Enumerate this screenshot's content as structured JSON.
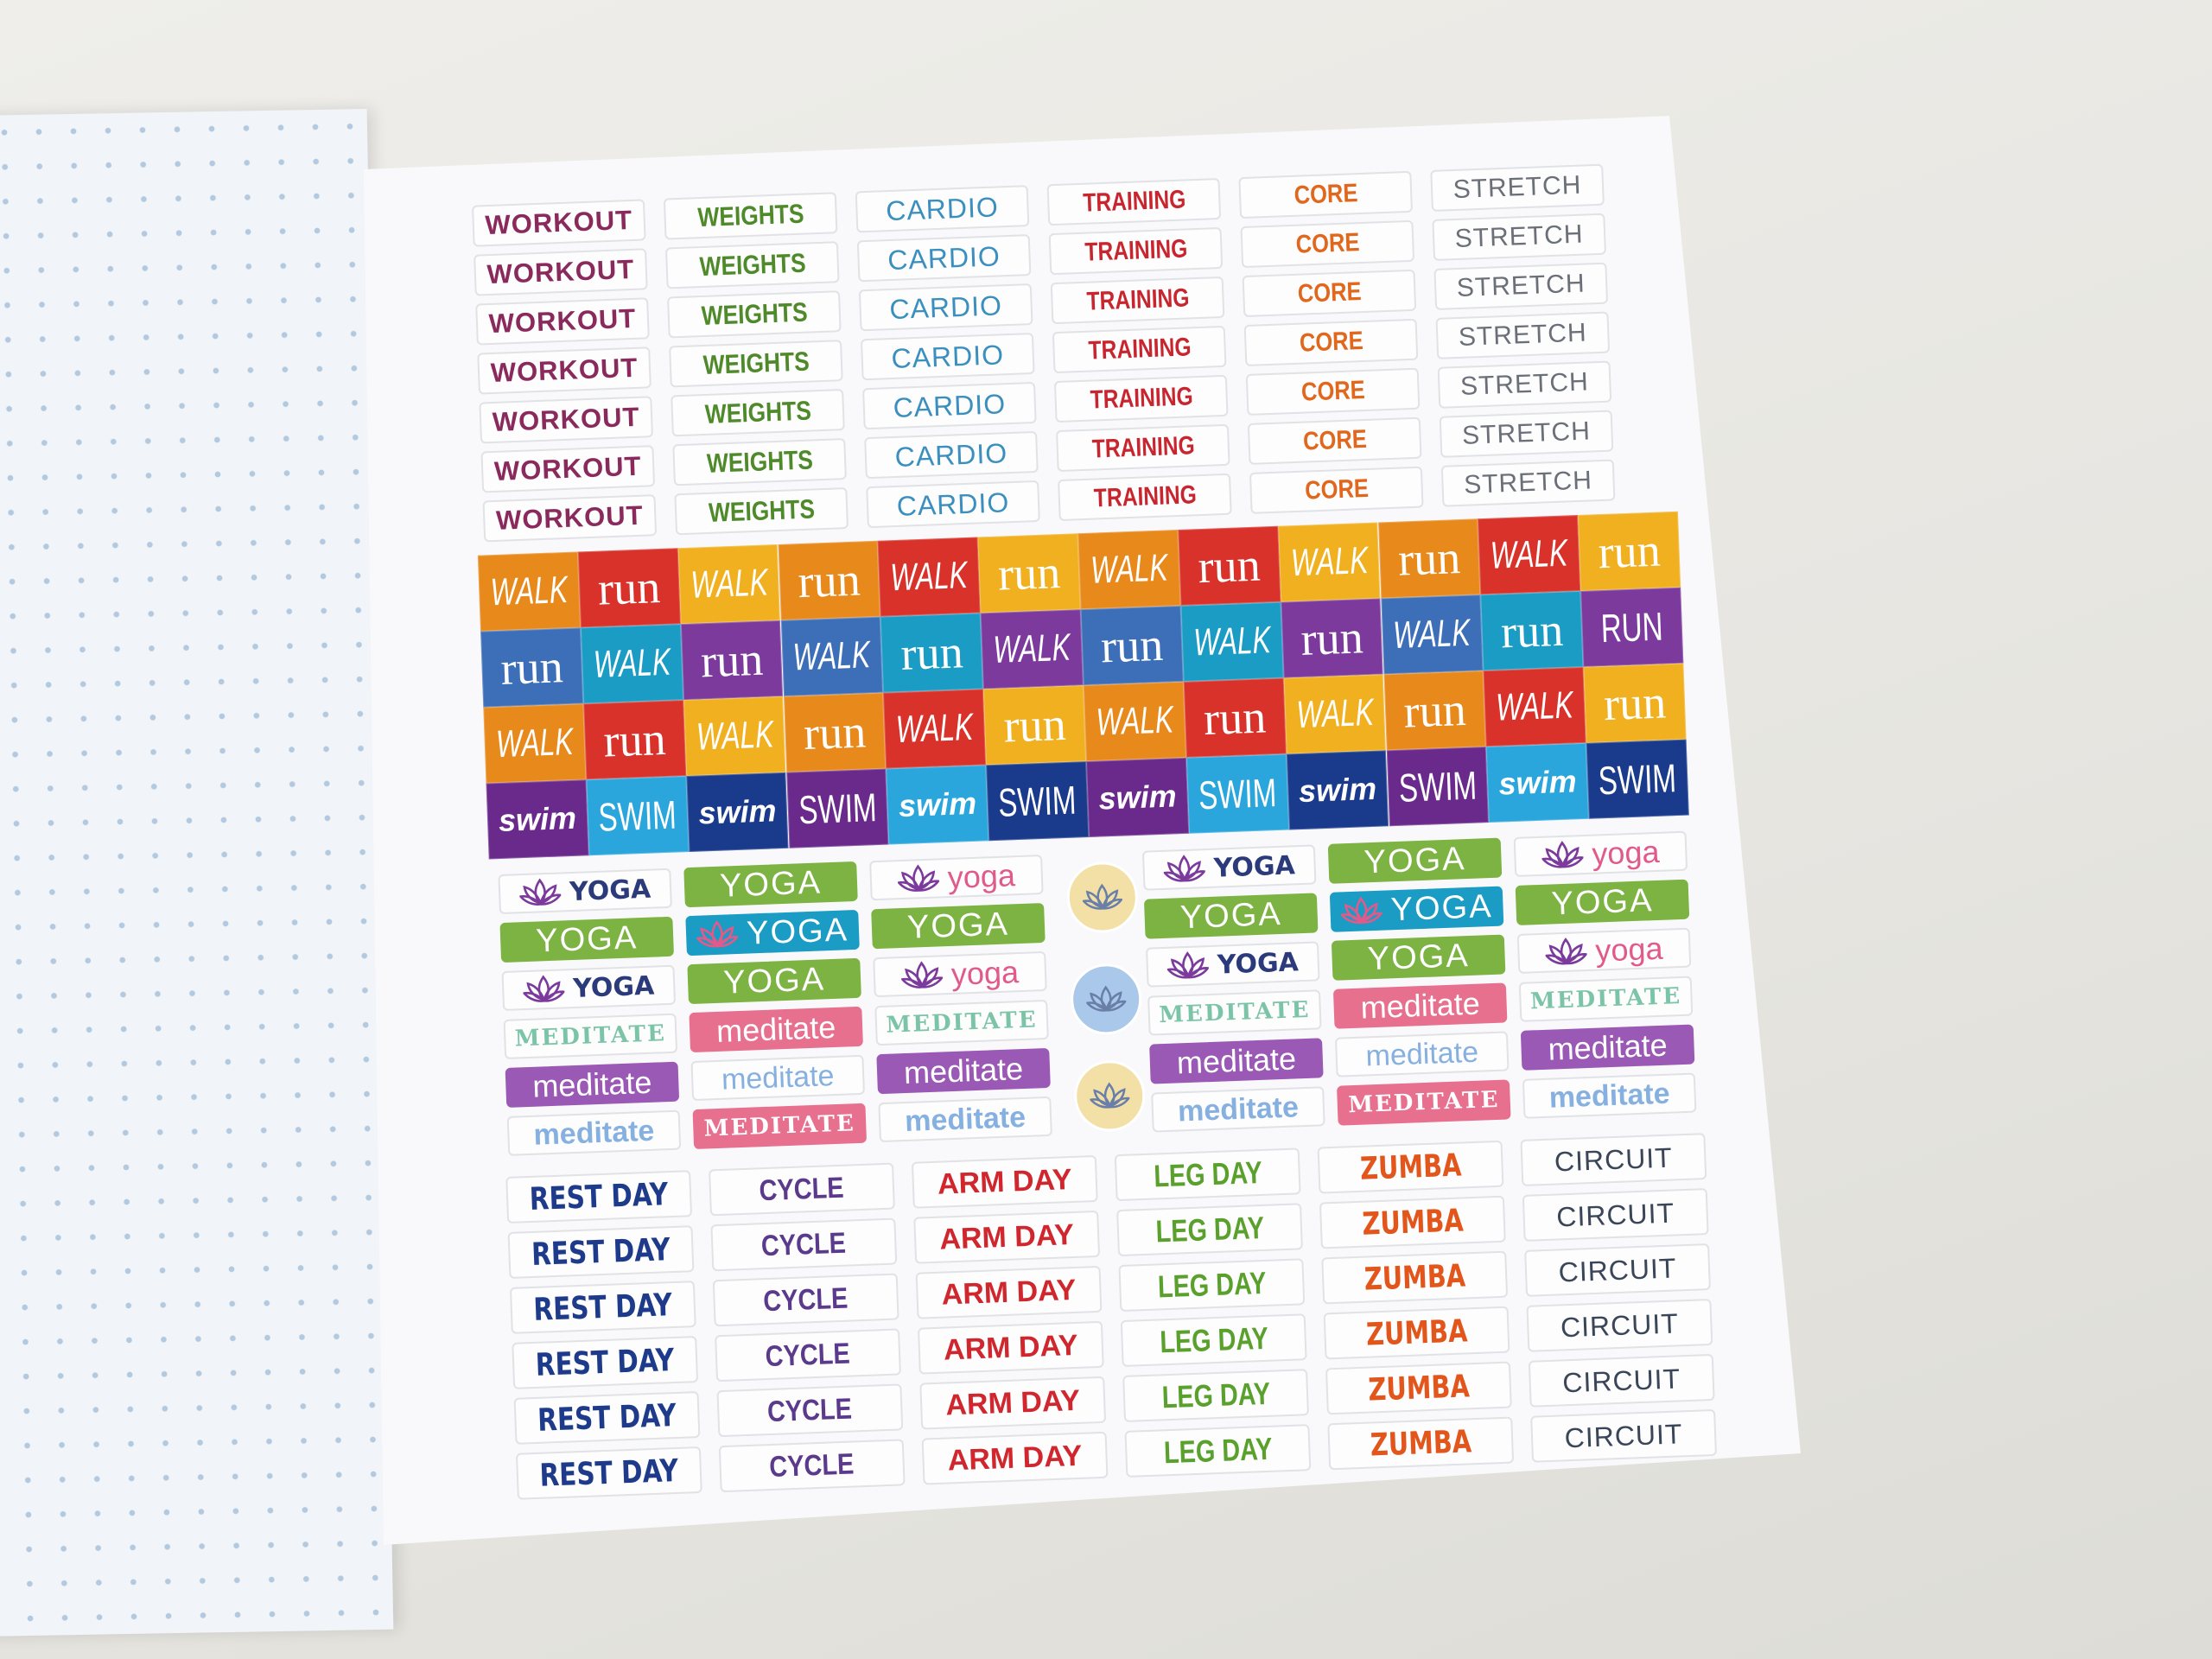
{
  "top_grid": [
    [
      "WORKOUT",
      "WORKOUT",
      "WORKOUT",
      "WORKOUT",
      "WORKOUT",
      "WORKOUT",
      "WORKOUT"
    ],
    [
      "WEIGHTS",
      "WEIGHTS",
      "WEIGHTS",
      "WEIGHTS",
      "WEIGHTS",
      "WEIGHTS",
      "WEIGHTS"
    ],
    [
      "CARDIO",
      "CARDIO",
      "CARDIO",
      "CARDIO",
      "CARDIO",
      "CARDIO",
      "CARDIO"
    ],
    [
      "TRAINING",
      "TRAINING",
      "TRAINING",
      "TRAINING",
      "TRAINING",
      "TRAINING",
      "TRAINING"
    ],
    [
      "CORE",
      "CORE",
      "CORE",
      "CORE",
      "CORE",
      "CORE",
      "CORE"
    ],
    [
      "STRETCH",
      "STRETCH",
      "STRETCH",
      "STRETCH",
      "STRETCH",
      "STRETCH",
      "STRETCH"
    ]
  ],
  "block_rows": [
    [
      {
        "text": "WALK",
        "color": "#e8891c"
      },
      {
        "text": "run",
        "color": "#d8322a"
      },
      {
        "text": "WALK",
        "color": "#f0b020"
      },
      {
        "text": "run",
        "color": "#e8891c"
      },
      {
        "text": "WALK",
        "color": "#d8322a"
      },
      {
        "text": "run",
        "color": "#f0b020"
      },
      {
        "text": "WALK",
        "color": "#e8891c"
      },
      {
        "text": "run",
        "color": "#d8322a"
      },
      {
        "text": "WALK",
        "color": "#f0b020"
      },
      {
        "text": "run",
        "color": "#e8891c"
      },
      {
        "text": "WALK",
        "color": "#d8322a"
      },
      {
        "text": "run",
        "color": "#f0b020"
      }
    ],
    [
      {
        "text": "run",
        "color": "#3d6fb8"
      },
      {
        "text": "WALK",
        "color": "#1a9cc4"
      },
      {
        "text": "run",
        "color": "#7b3a9c"
      },
      {
        "text": "WALK",
        "color": "#3d6fb8"
      },
      {
        "text": "run",
        "color": "#1a9cc4"
      },
      {
        "text": "WALK",
        "color": "#7b3a9c"
      },
      {
        "text": "run",
        "color": "#3d6fb8"
      },
      {
        "text": "WALK",
        "color": "#1a9cc4"
      },
      {
        "text": "run",
        "color": "#7b3a9c"
      },
      {
        "text": "WALK",
        "color": "#3d6fb8"
      },
      {
        "text": "run",
        "color": "#1a9cc4"
      },
      {
        "text": "RUN",
        "color": "#7b3a9c"
      }
    ],
    [
      {
        "text": "WALK",
        "color": "#e8891c"
      },
      {
        "text": "run",
        "color": "#d8322a"
      },
      {
        "text": "WALK",
        "color": "#f0b020"
      },
      {
        "text": "run",
        "color": "#e8891c"
      },
      {
        "text": "WALK",
        "color": "#d8322a"
      },
      {
        "text": "run",
        "color": "#f0b020"
      },
      {
        "text": "WALK",
        "color": "#e8891c"
      },
      {
        "text": "run",
        "color": "#d8322a"
      },
      {
        "text": "WALK",
        "color": "#f0b020"
      },
      {
        "text": "run",
        "color": "#e8891c"
      },
      {
        "text": "WALK",
        "color": "#d8322a"
      },
      {
        "text": "run",
        "color": "#f0b020"
      }
    ],
    [
      {
        "text": "swim",
        "color": "#6a2a8c"
      },
      {
        "text": "SWIM",
        "color": "#2aa6dc"
      },
      {
        "text": "swim",
        "color": "#1a3a8c"
      },
      {
        "text": "SWIM",
        "color": "#6a2a8c"
      },
      {
        "text": "swim",
        "color": "#2aa6dc"
      },
      {
        "text": "SWIM",
        "color": "#1a3a8c"
      },
      {
        "text": "swim",
        "color": "#6a2a8c"
      },
      {
        "text": "SWIM",
        "color": "#2aa6dc"
      },
      {
        "text": "swim",
        "color": "#1a3a8c"
      },
      {
        "text": "SWIM",
        "color": "#6a2a8c"
      },
      {
        "text": "swim",
        "color": "#2aa6dc"
      },
      {
        "text": "SWIM",
        "color": "#1a3a8c"
      }
    ]
  ],
  "yoga_grid": [
    [
      {
        "text": "YOGA",
        "color": "#2a3a7a",
        "filled": false
      },
      {
        "text": "YOGA",
        "color": "#7cb342",
        "filled": true
      },
      {
        "text": "YOGA",
        "color": "#2a3a7a",
        "filled": false
      },
      {
        "text": "MEDITATE",
        "color": "#7cc4a8",
        "filled": false
      },
      {
        "text": "meditate",
        "color": "#9b59b6",
        "filled": true
      },
      {
        "text": "meditate",
        "color": "#86b0e0",
        "filled": false
      }
    ],
    [
      {
        "text": "YOGA",
        "color": "#7cb342",
        "filled": true
      },
      {
        "text": "YOGA",
        "color": "#1a9cc4",
        "filled": true
      },
      {
        "text": "YOGA",
        "color": "#7cb342",
        "filled": true
      },
      {
        "text": "meditate",
        "color": "#e8708f",
        "filled": true
      },
      {
        "text": "meditate",
        "color": "#86b0e0",
        "filled": false
      },
      {
        "text": "MEDITATE",
        "color": "#e8708f",
        "filled": true
      }
    ],
    [
      {
        "text": "yoga",
        "color": "#e05a8a",
        "filled": false
      },
      {
        "text": "YOGA",
        "color": "#7cb342",
        "filled": true
      },
      {
        "text": "yoga",
        "color": "#e05a8a",
        "filled": false
      },
      {
        "text": "MEDITATE",
        "color": "#7cc4a8",
        "filled": false
      },
      {
        "text": "meditate",
        "color": "#9b59b6",
        "filled": true
      },
      {
        "text": "meditate",
        "color": "#86b0e0",
        "filled": false
      }
    ],
    [
      {
        "text": "YOGA",
        "color": "#2a3a7a",
        "filled": false
      },
      {
        "text": "YOGA",
        "color": "#7cb342",
        "filled": true
      },
      {
        "text": "YOGA",
        "color": "#2a3a7a",
        "filled": false
      },
      {
        "text": "MEDITATE",
        "color": "#7cc4a8",
        "filled": false
      },
      {
        "text": "meditate",
        "color": "#9b59b6",
        "filled": true
      },
      {
        "text": "meditate",
        "color": "#86b0e0",
        "filled": false
      }
    ],
    [
      {
        "text": "YOGA",
        "color": "#7cb342",
        "filled": true
      },
      {
        "text": "YOGA",
        "color": "#1a9cc4",
        "filled": true
      },
      {
        "text": "YOGA",
        "color": "#7cb342",
        "filled": true
      },
      {
        "text": "meditate",
        "color": "#e8708f",
        "filled": true
      },
      {
        "text": "meditate",
        "color": "#86b0e0",
        "filled": false
      },
      {
        "text": "MEDITATE",
        "color": "#e8708f",
        "filled": true
      }
    ],
    [
      {
        "text": "yoga",
        "color": "#e05a8a",
        "filled": false
      },
      {
        "text": "YOGA",
        "color": "#7cb342",
        "filled": true
      },
      {
        "text": "yoga",
        "color": "#e05a8a",
        "filled": false
      },
      {
        "text": "MEDITATE",
        "color": "#7cc4a8",
        "filled": false
      },
      {
        "text": "meditate",
        "color": "#9b59b6",
        "filled": true
      },
      {
        "text": "meditate",
        "color": "#86b0e0",
        "filled": false
      }
    ]
  ],
  "bottom_grid": [
    [
      "REST DAY",
      "REST DAY",
      "REST DAY",
      "REST DAY",
      "REST DAY",
      "REST DAY"
    ],
    [
      "CYCLE",
      "CYCLE",
      "CYCLE",
      "CYCLE",
      "CYCLE",
      "CYCLE"
    ],
    [
      "ARM DAY",
      "ARM DAY",
      "ARM DAY",
      "ARM DAY",
      "ARM DAY",
      "ARM DAY"
    ],
    [
      "LEG DAY",
      "LEG DAY",
      "LEG DAY",
      "LEG DAY",
      "LEG DAY",
      "LEG DAY"
    ],
    [
      "ZUMBA",
      "ZUMBA",
      "ZUMBA",
      "ZUMBA",
      "ZUMBA",
      "ZUMBA"
    ],
    [
      "CIRCUIT",
      "CIRCUIT",
      "CIRCUIT",
      "CIRCUIT",
      "CIRCUIT",
      "CIRCUIT"
    ]
  ]
}
